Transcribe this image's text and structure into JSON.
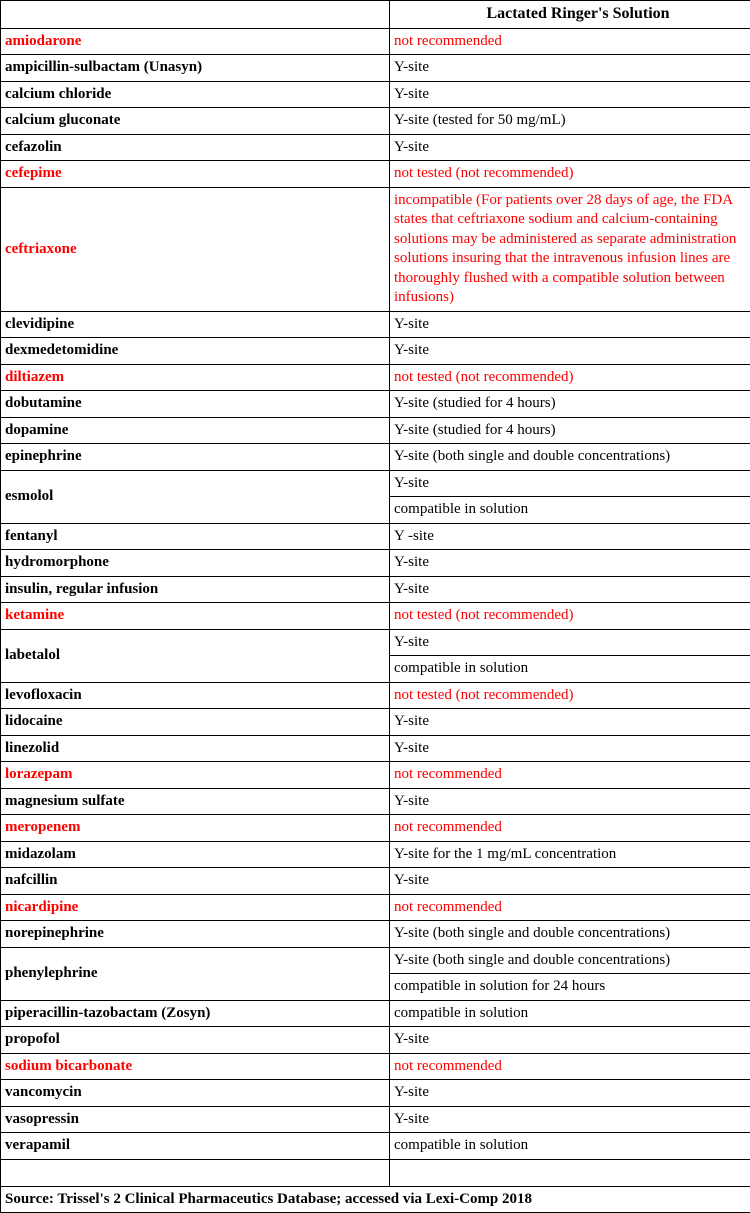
{
  "header": {
    "drugColumn": "",
    "compatColumn": "Lactated Ringer's Solution"
  },
  "rows": [
    {
      "drug": "amiodarone",
      "compat": [
        "not recommended"
      ],
      "drug_red": true,
      "compat_red": [
        true
      ]
    },
    {
      "drug": "ampicillin-sulbactam (Unasyn)",
      "compat": [
        "Y-site"
      ],
      "drug_red": false,
      "compat_red": [
        false
      ]
    },
    {
      "drug": "calcium chloride",
      "compat": [
        "Y-site"
      ],
      "drug_red": false,
      "compat_red": [
        false
      ]
    },
    {
      "drug": "calcium gluconate",
      "compat": [
        "Y-site (tested for 50 mg/mL)"
      ],
      "drug_red": false,
      "compat_red": [
        false
      ]
    },
    {
      "drug": "cefazolin",
      "compat": [
        "Y-site"
      ],
      "drug_red": false,
      "compat_red": [
        false
      ]
    },
    {
      "drug": "cefepime",
      "compat": [
        "not tested (not recommended)"
      ],
      "drug_red": true,
      "compat_red": [
        true
      ]
    },
    {
      "drug": "ceftriaxone",
      "compat": [
        "incompatible (For patients over 28 days of age, the FDA states that ceftriaxone sodium and calcium-containing solutions may be administered as separate administration solutions insuring that the intravenous infusion lines are thoroughly flushed with a compatible solution between infusions)"
      ],
      "drug_red": true,
      "compat_red": [
        true
      ]
    },
    {
      "drug": "clevidipine",
      "compat": [
        "Y-site"
      ],
      "drug_red": false,
      "compat_red": [
        false
      ]
    },
    {
      "drug": "dexmedetomidine",
      "compat": [
        "Y-site"
      ],
      "drug_red": false,
      "compat_red": [
        false
      ]
    },
    {
      "drug": "diltiazem",
      "compat": [
        "not tested (not recommended)"
      ],
      "drug_red": true,
      "compat_red": [
        true
      ]
    },
    {
      "drug": "dobutamine",
      "compat": [
        "Y-site (studied for 4 hours)"
      ],
      "drug_red": false,
      "compat_red": [
        false
      ]
    },
    {
      "drug": "dopamine",
      "compat": [
        "Y-site (studied for 4 hours)"
      ],
      "drug_red": false,
      "compat_red": [
        false
      ]
    },
    {
      "drug": "epinephrine",
      "compat": [
        "Y-site (both single and double concentrations)"
      ],
      "drug_red": false,
      "compat_red": [
        false
      ]
    },
    {
      "drug": "esmolol",
      "compat": [
        "Y-site",
        "compatible in solution"
      ],
      "drug_red": false,
      "compat_red": [
        false,
        false
      ]
    },
    {
      "drug": "fentanyl",
      "compat": [
        "Y -site"
      ],
      "drug_red": false,
      "compat_red": [
        false
      ]
    },
    {
      "drug": "hydromorphone",
      "compat": [
        "Y-site"
      ],
      "drug_red": false,
      "compat_red": [
        false
      ]
    },
    {
      "drug": "insulin, regular infusion",
      "compat": [
        "Y-site"
      ],
      "drug_red": false,
      "compat_red": [
        false
      ]
    },
    {
      "drug": "ketamine",
      "compat": [
        "not tested (not recommended)"
      ],
      "drug_red": true,
      "compat_red": [
        true
      ]
    },
    {
      "drug": "labetalol",
      "compat": [
        "Y-site",
        "compatible in solution"
      ],
      "drug_red": false,
      "compat_red": [
        false,
        false
      ]
    },
    {
      "drug": "levofloxacin",
      "compat": [
        "not tested (not recommended)"
      ],
      "drug_red": false,
      "compat_red": [
        true
      ]
    },
    {
      "drug": "lidocaine",
      "compat": [
        "Y-site"
      ],
      "drug_red": false,
      "compat_red": [
        false
      ]
    },
    {
      "drug": "linezolid",
      "compat": [
        "Y-site"
      ],
      "drug_red": false,
      "compat_red": [
        false
      ]
    },
    {
      "drug": "lorazepam",
      "compat": [
        "not recommended"
      ],
      "drug_red": true,
      "compat_red": [
        true
      ]
    },
    {
      "drug": "magnesium sulfate",
      "compat": [
        "Y-site"
      ],
      "drug_red": false,
      "compat_red": [
        false
      ]
    },
    {
      "drug": "meropenem",
      "compat": [
        "not recommended"
      ],
      "drug_red": true,
      "compat_red": [
        true
      ]
    },
    {
      "drug": "midazolam",
      "compat": [
        "Y-site for the 1 mg/mL concentration"
      ],
      "drug_red": false,
      "compat_red": [
        false
      ]
    },
    {
      "drug": "nafcillin",
      "compat": [
        "Y-site"
      ],
      "drug_red": false,
      "compat_red": [
        false
      ]
    },
    {
      "drug": "nicardipine",
      "compat": [
        "not recommended"
      ],
      "drug_red": true,
      "compat_red": [
        true
      ]
    },
    {
      "drug": "norepinephrine",
      "compat": [
        "Y-site (both single and double concentrations)"
      ],
      "drug_red": false,
      "compat_red": [
        false
      ]
    },
    {
      "drug": "phenylephrine",
      "compat": [
        "Y-site (both single and double concentrations)",
        "compatible in solution for 24 hours"
      ],
      "drug_red": false,
      "compat_red": [
        false,
        false
      ]
    },
    {
      "drug": "piperacillin-tazobactam (Zosyn)",
      "compat": [
        "compatible in solution"
      ],
      "drug_red": false,
      "compat_red": [
        false
      ]
    },
    {
      "drug": "propofol",
      "compat": [
        "Y-site"
      ],
      "drug_red": false,
      "compat_red": [
        false
      ]
    },
    {
      "drug": "sodium bicarbonate",
      "compat": [
        "not recommended"
      ],
      "drug_red": true,
      "compat_red": [
        true
      ]
    },
    {
      "drug": "vancomycin",
      "compat": [
        "Y-site"
      ],
      "drug_red": false,
      "compat_red": [
        false
      ]
    },
    {
      "drug": "vasopressin",
      "compat": [
        "Y-site"
      ],
      "drug_red": false,
      "compat_red": [
        false
      ]
    },
    {
      "drug": "verapamil",
      "compat": [
        "compatible in solution"
      ],
      "drug_red": false,
      "compat_red": [
        false
      ]
    }
  ],
  "source": "Source: Trissel's 2 Clinical Pharmaceutics Database; accessed via Lexi-Comp 2018"
}
